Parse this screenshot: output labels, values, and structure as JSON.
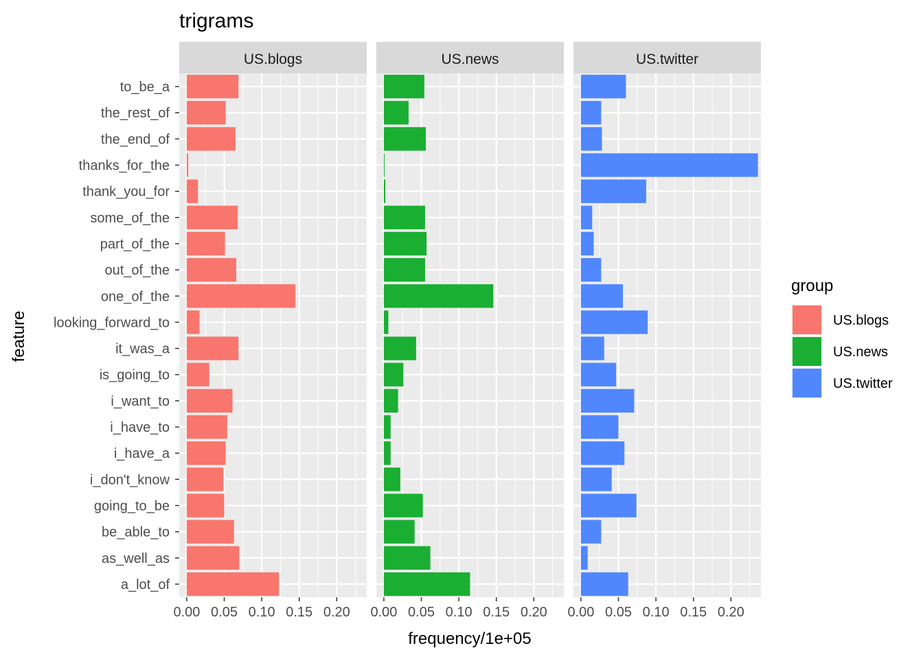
{
  "chart_data": {
    "type": "bar",
    "orientation": "horizontal",
    "title": "trigrams",
    "xlabel": "frequency/1e+05",
    "ylabel": "feature",
    "xlim": [
      -0.01,
      0.24
    ],
    "x_ticks": [
      0.0,
      0.05,
      0.1,
      0.15,
      0.2
    ],
    "x_tick_labels": [
      "0.00",
      "0.05",
      "0.10",
      "0.15",
      "0.20"
    ],
    "grid": true,
    "legend": {
      "title": "group",
      "placement": "right",
      "entries": [
        "US.blogs",
        "US.news",
        "US.twitter"
      ]
    },
    "categories": [
      "to_be_a",
      "the_rest_of",
      "the_end_of",
      "thanks_for_the",
      "thank_you_for",
      "some_of_the",
      "part_of_the",
      "out_of_the",
      "one_of_the",
      "looking_forward_to",
      "it_was_a",
      "is_going_to",
      "i_want_to",
      "i_have_to",
      "i_have_a",
      "i_don't_know",
      "going_to_be",
      "be_able_to",
      "as_well_as",
      "a_lot_of"
    ],
    "series": [
      {
        "name": "US.blogs",
        "color": "#F8766D",
        "values": [
          0.069,
          0.052,
          0.065,
          0.002,
          0.015,
          0.068,
          0.051,
          0.066,
          0.145,
          0.017,
          0.069,
          0.03,
          0.061,
          0.054,
          0.052,
          0.049,
          0.05,
          0.063,
          0.07,
          0.123
        ]
      },
      {
        "name": "US.news",
        "color": "#1AAF32",
        "values": [
          0.054,
          0.033,
          0.056,
          0.001,
          0.002,
          0.055,
          0.057,
          0.055,
          0.146,
          0.006,
          0.043,
          0.026,
          0.019,
          0.009,
          0.009,
          0.022,
          0.052,
          0.041,
          0.062,
          0.115
        ]
      },
      {
        "name": "US.twitter",
        "color": "#5087FF",
        "values": [
          0.06,
          0.027,
          0.028,
          0.236,
          0.087,
          0.015,
          0.017,
          0.027,
          0.056,
          0.089,
          0.031,
          0.047,
          0.071,
          0.05,
          0.058,
          0.041,
          0.074,
          0.027,
          0.009,
          0.063
        ]
      }
    ]
  }
}
